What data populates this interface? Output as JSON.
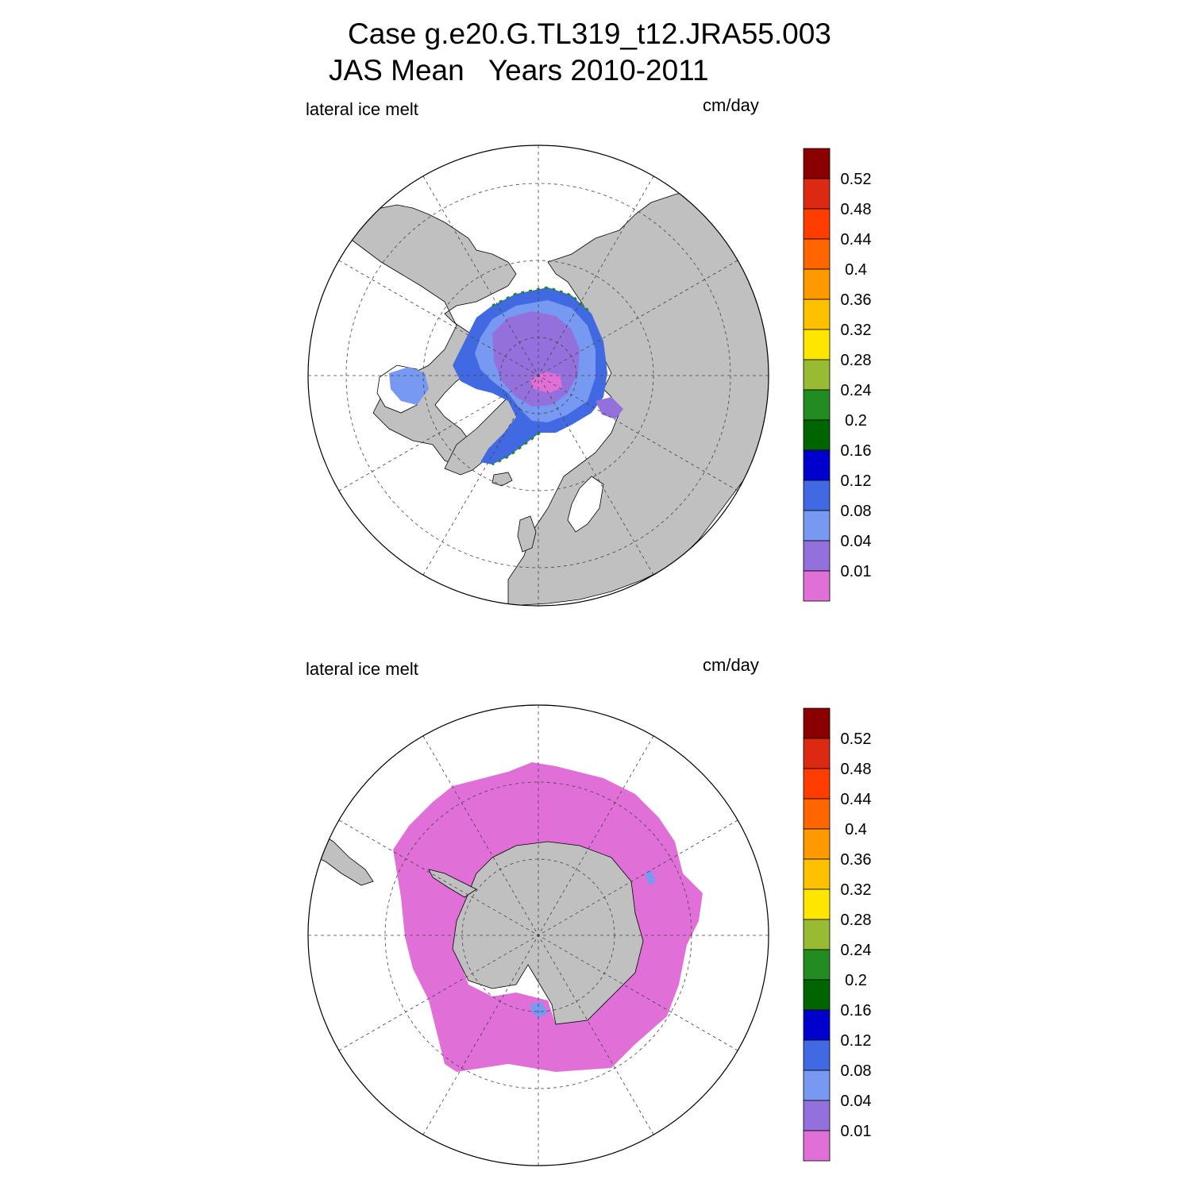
{
  "title": {
    "line1": "Case g.e20.G.TL319_t12.JRA55.003",
    "line2": "JAS Mean   Years 2010-2011"
  },
  "panels": [
    {
      "hemisphere": "north",
      "variable_label": "lateral ice melt",
      "units_label": "cm/day"
    },
    {
      "hemisphere": "south",
      "variable_label": "lateral ice melt",
      "units_label": "cm/day"
    }
  ],
  "colorbar": {
    "tick_labels": [
      "0.52",
      "0.48",
      "0.44",
      "0.4",
      "0.36",
      "0.32",
      "0.28",
      "0.24",
      "0.2",
      "0.16",
      "0.12",
      "0.08",
      "0.04",
      "0.01"
    ],
    "colors_top_to_bottom": [
      "#8b0000",
      "#dc2a12",
      "#ff3d00",
      "#ff6600",
      "#ff9900",
      "#ffc000",
      "#ffe600",
      "#99bb33",
      "#228b22",
      "#006400",
      "#0000cd",
      "#4169e1",
      "#7799f2",
      "#9370db",
      "#e070d8"
    ]
  },
  "map_colors": {
    "land": "#c0c0c0",
    "ocean": "#ffffff",
    "grid": "#444444"
  }
}
